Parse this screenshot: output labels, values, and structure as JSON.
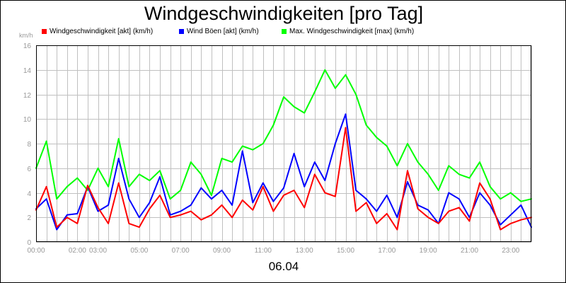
{
  "chart_data": {
    "type": "line",
    "title": "Windgeschwindigkeiten [pro Tag]",
    "ylabel": "km/h",
    "xlabel": "06.04",
    "ylim": [
      0,
      16
    ],
    "yticks": [
      0,
      2,
      4,
      6,
      8,
      10,
      12,
      14,
      16
    ],
    "xlim": [
      0,
      24
    ],
    "xticks": [
      {
        "value": 0,
        "label": "00:00"
      },
      {
        "value": 2,
        "label": "02:00"
      },
      {
        "value": 3,
        "label": "03:00"
      },
      {
        "value": 5,
        "label": "05:00"
      },
      {
        "value": 7,
        "label": "07:00"
      },
      {
        "value": 9,
        "label": "09:00"
      },
      {
        "value": 11,
        "label": "11:00"
      },
      {
        "value": 13,
        "label": "13:00"
      },
      {
        "value": 15,
        "label": "15:00"
      },
      {
        "value": 17,
        "label": "17:00"
      },
      {
        "value": 19,
        "label": "19:00"
      },
      {
        "value": 21,
        "label": "21:00"
      },
      {
        "value": 23,
        "label": "23:00"
      }
    ],
    "grid": true,
    "legend_position": "top",
    "x": [
      0,
      0.5,
      1,
      1.5,
      2,
      2.5,
      3,
      3.5,
      4,
      4.5,
      5,
      5.5,
      6,
      6.5,
      7,
      7.5,
      8,
      8.5,
      9,
      9.5,
      10,
      10.5,
      11,
      11.5,
      12,
      12.5,
      13,
      13.5,
      14,
      14.5,
      15,
      15.5,
      16,
      16.5,
      17,
      17.5,
      18,
      18.5,
      19,
      19.5,
      20,
      20.5,
      21,
      21.5,
      22,
      22.5,
      23,
      23.5,
      24
    ],
    "series": [
      {
        "name": "Windgeschwindigkeit [akt] (km/h)",
        "color": "#ff0000",
        "values": [
          2.6,
          4.5,
          1.2,
          2.0,
          1.5,
          4.6,
          2.8,
          1.5,
          4.8,
          1.5,
          1.2,
          2.7,
          3.8,
          2.0,
          2.2,
          2.5,
          1.8,
          2.2,
          3.0,
          2.0,
          3.4,
          2.6,
          4.5,
          2.5,
          3.8,
          4.2,
          2.8,
          5.5,
          4.0,
          3.7,
          9.3,
          2.5,
          3.2,
          1.5,
          2.3,
          1.0,
          5.8,
          2.7,
          2.0,
          1.5,
          2.5,
          2.8,
          1.7,
          4.8,
          3.5,
          1.0,
          1.5,
          1.8,
          2.0
        ]
      },
      {
        "name": "Wind Böen [akt] (km/h)",
        "color": "#0000ff",
        "values": [
          2.7,
          3.5,
          1.0,
          2.2,
          2.3,
          4.5,
          2.5,
          3.0,
          6.8,
          3.5,
          2.0,
          3.2,
          5.3,
          2.2,
          2.5,
          3.0,
          4.4,
          3.5,
          4.2,
          3.0,
          7.4,
          3.2,
          4.8,
          3.3,
          4.4,
          7.2,
          4.5,
          6.5,
          5.0,
          8.0,
          10.4,
          4.2,
          3.5,
          2.5,
          3.8,
          2.0,
          4.9,
          3.0,
          2.6,
          1.5,
          4.0,
          3.5,
          2.0,
          4.0,
          3.0,
          1.4,
          2.2,
          3.0,
          1.2
        ]
      },
      {
        "name": "Max. Windgeschwindigkeit [max] (km/h)",
        "color": "#00ff00",
        "values": [
          6.0,
          8.2,
          3.5,
          4.5,
          5.2,
          4.2,
          6.0,
          4.5,
          8.4,
          4.5,
          5.5,
          5.0,
          5.8,
          3.5,
          4.2,
          6.5,
          5.5,
          3.8,
          6.8,
          6.5,
          7.8,
          7.5,
          8.0,
          9.5,
          11.8,
          11.0,
          10.5,
          12.2,
          14.0,
          12.5,
          13.6,
          12.0,
          9.5,
          8.5,
          7.8,
          6.2,
          8.0,
          6.5,
          5.5,
          4.2,
          6.2,
          5.5,
          5.2,
          6.5,
          4.5,
          3.5,
          4.0,
          3.3,
          3.5
        ]
      }
    ],
    "date_label": "06.04"
  },
  "colors": {
    "plot_border": "#000000",
    "grid": "#c0c0c0",
    "tick_label": "#999999"
  }
}
